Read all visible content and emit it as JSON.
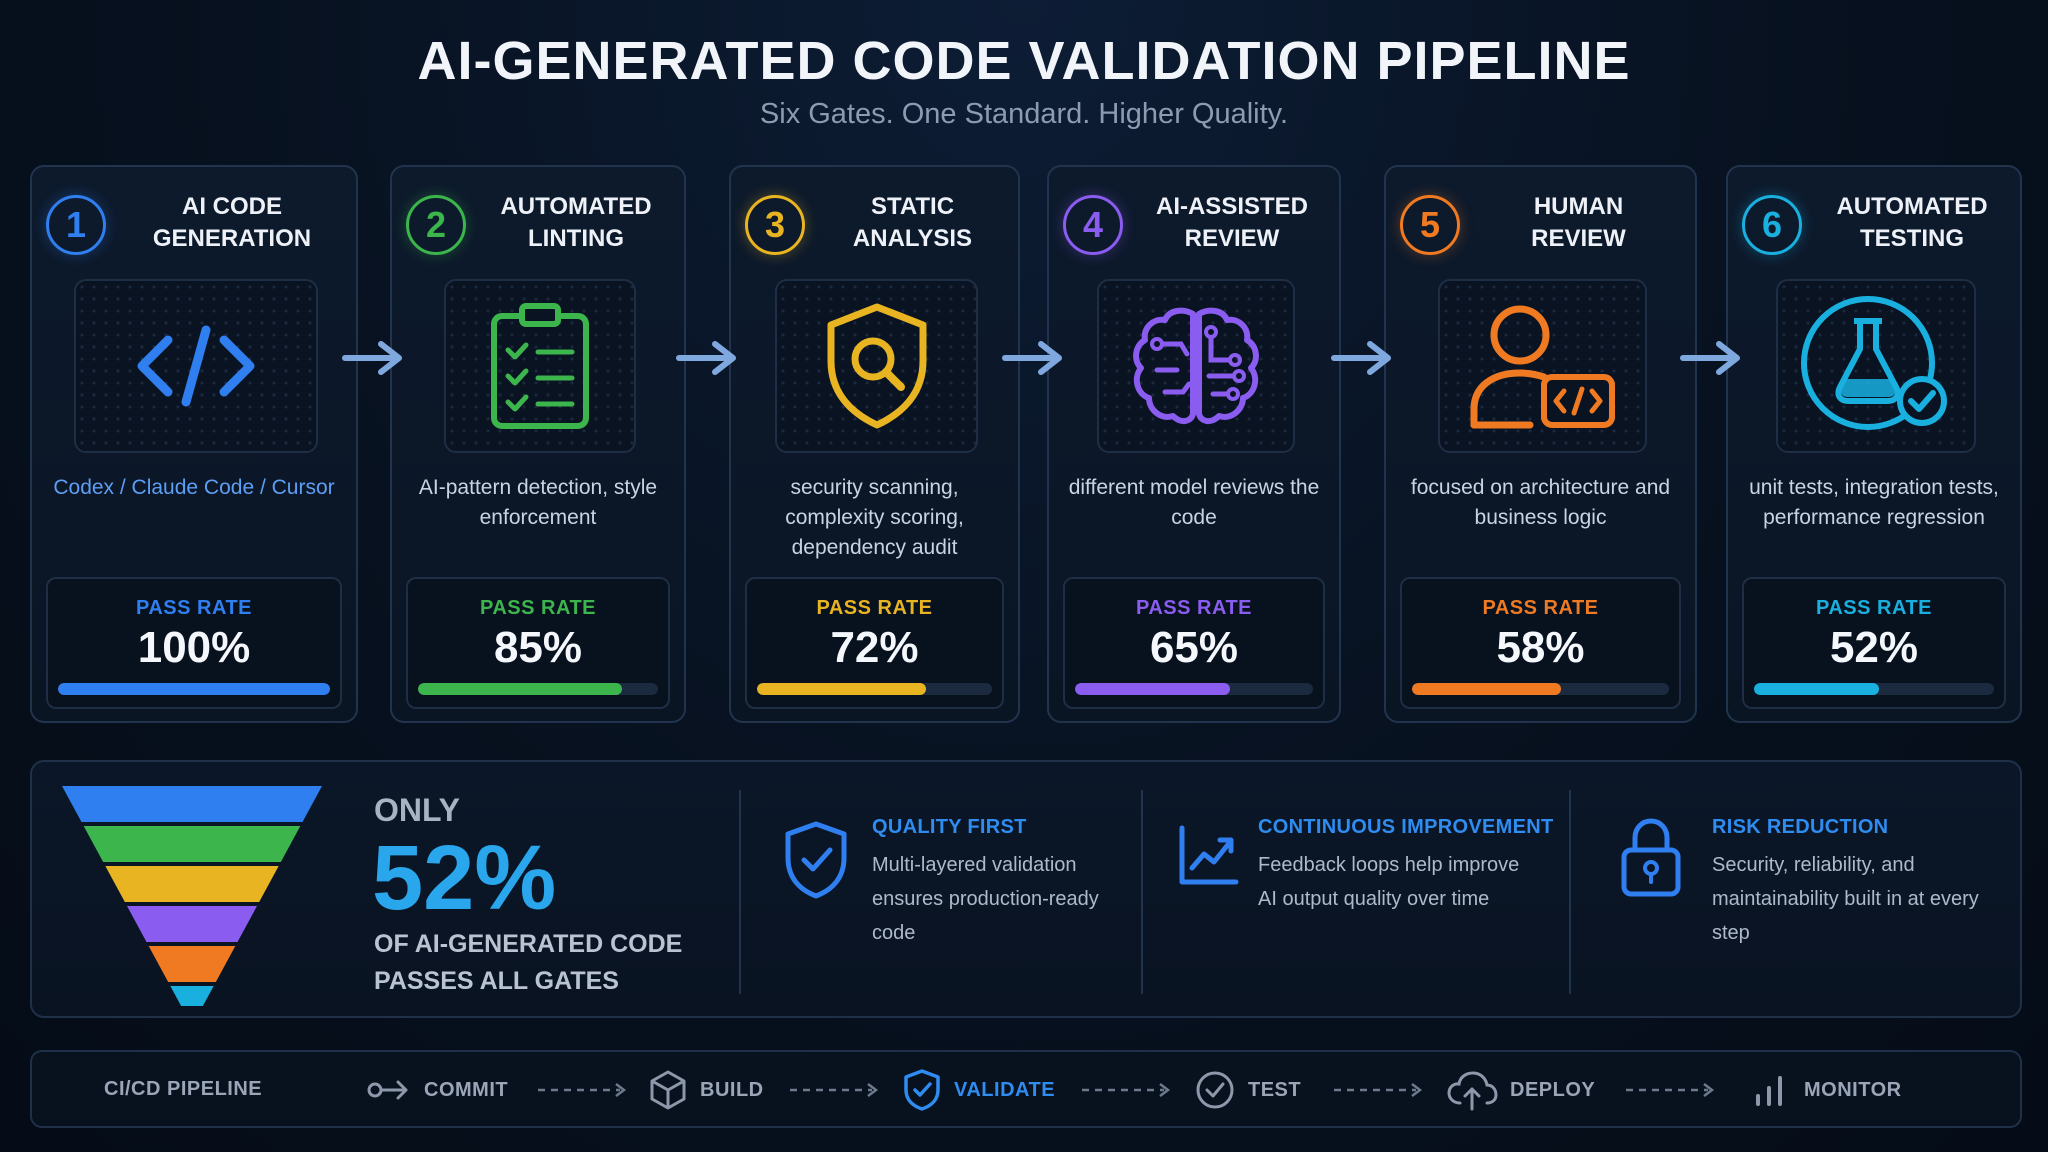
{
  "title": "AI-GENERATED CODE VALIDATION PIPELINE",
  "subtitle": "Six Gates. One Standard. Higher Quality.",
  "gates": [
    {
      "number": "1",
      "title_line1": "AI CODE",
      "title_line2": "GENERATION",
      "icon": "code-icon",
      "description": "Codex / Claude Code / Cursor",
      "pass_label": "PASS RATE",
      "pass_rate": "100%",
      "pass_value": 100,
      "color": "#2f7ff0"
    },
    {
      "number": "2",
      "title_line1": "AUTOMATED",
      "title_line2": "LINTING",
      "icon": "checklist-icon",
      "description": "AI-pattern detection, style enforcement",
      "pass_label": "PASS RATE",
      "pass_rate": "85%",
      "pass_value": 85,
      "color": "#3cb64c"
    },
    {
      "number": "3",
      "title_line1": "STATIC",
      "title_line2": "ANALYSIS",
      "icon": "shield-search-icon",
      "description": "security scanning, complexity scoring, dependency audit",
      "pass_label": "PASS RATE",
      "pass_rate": "72%",
      "pass_value": 72,
      "color": "#e8b421"
    },
    {
      "number": "4",
      "title_line1": "AI-ASSISTED",
      "title_line2": "REVIEW",
      "icon": "brain-icon",
      "description": "different model reviews the code",
      "pass_label": "PASS RATE",
      "pass_rate": "65%",
      "pass_value": 65,
      "color": "#8a5cf0"
    },
    {
      "number": "5",
      "title_line1": "HUMAN",
      "title_line2": "REVIEW",
      "icon": "person-code-icon",
      "description": "focused on architecture and business logic",
      "pass_label": "PASS RATE",
      "pass_rate": "58%",
      "pass_value": 58,
      "color": "#f07a22"
    },
    {
      "number": "6",
      "title_line1": "AUTOMATED",
      "title_line2": "TESTING",
      "icon": "flask-check-icon",
      "description": "unit tests, integration tests, performance regression",
      "pass_label": "PASS RATE",
      "pass_rate": "52%",
      "pass_value": 52,
      "color": "#19b0e0"
    }
  ],
  "summary": {
    "only": "ONLY",
    "percent": "52%",
    "of_line1": "OF AI-GENERATED CODE",
    "of_line2": "PASSES ALL GATES",
    "features": [
      {
        "icon": "shield-check-icon",
        "title": "QUALITY FIRST",
        "text": "Multi-layered validation ensures production-ready code"
      },
      {
        "icon": "chart-up-icon",
        "title": "CONTINUOUS IMPROVEMENT",
        "text": "Feedback loops help improve AI output quality over time"
      },
      {
        "icon": "lock-icon",
        "title": "RISK REDUCTION",
        "text": "Security, reliability, and maintainability built in at every step"
      }
    ]
  },
  "cicd": {
    "label": "CI/CD PIPELINE",
    "steps": [
      {
        "icon": "commit-icon",
        "label": "COMMIT",
        "active": false
      },
      {
        "icon": "cube-icon",
        "label": "BUILD",
        "active": false
      },
      {
        "icon": "shield-check-icon",
        "label": "VALIDATE",
        "active": true
      },
      {
        "icon": "check-circle-icon",
        "label": "TEST",
        "active": false
      },
      {
        "icon": "cloud-upload-icon",
        "label": "DEPLOY",
        "active": false
      },
      {
        "icon": "bars-icon",
        "label": "MONITOR",
        "active": false
      }
    ]
  },
  "funnel_colors": [
    "#2f7ff0",
    "#3cb64c",
    "#e8b421",
    "#8a5cf0",
    "#f07a22",
    "#19b0e0"
  ]
}
